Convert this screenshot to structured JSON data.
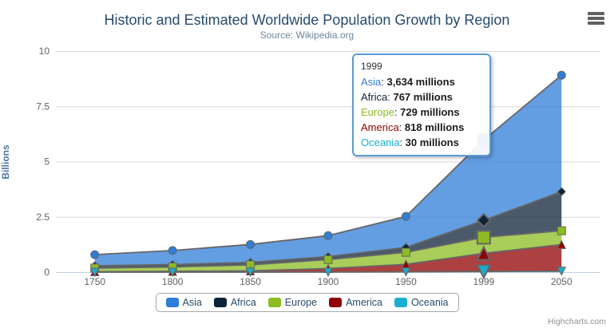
{
  "header": {
    "title": "Historic and Estimated Worldwide Population Growth by Region",
    "subtitle": "Source: Wikipedia.org"
  },
  "y_axis": {
    "title": "Billions",
    "ticks": [
      "0",
      "2.5",
      "5",
      "7.5",
      "10"
    ]
  },
  "x_axis": {
    "categories": [
      "1750",
      "1800",
      "1850",
      "1900",
      "1950",
      "1999",
      "2050"
    ]
  },
  "chart_data": {
    "type": "area",
    "stacking": "normal",
    "title": "Historic and Estimated Worldwide Population Growth by Region",
    "subtitle": "Source: Wikipedia.org",
    "unit": "millions",
    "ylabel": "Billions",
    "ylim": [
      0,
      10
    ],
    "grid": true,
    "legend_position": "bottom",
    "categories": [
      "1750",
      "1800",
      "1850",
      "1900",
      "1950",
      "1999",
      "2050"
    ],
    "hover_category": "1999",
    "hover_index": 5,
    "series": [
      {
        "name": "Asia",
        "color": "#2f7ed8",
        "marker": "circle",
        "values": [
          502,
          635,
          809,
          947,
          1402,
          3634,
          5268
        ]
      },
      {
        "name": "Africa",
        "color": "#0d233a",
        "marker": "diamond",
        "values": [
          106,
          107,
          111,
          133,
          221,
          767,
          1766
        ]
      },
      {
        "name": "Europe",
        "color": "#8bbc21",
        "marker": "square",
        "values": [
          163,
          203,
          276,
          408,
          547,
          729,
          628
        ]
      },
      {
        "name": "America",
        "color": "#910000",
        "marker": "triangle",
        "values": [
          18,
          31,
          54,
          156,
          339,
          818,
          1201
        ]
      },
      {
        "name": "Oceania",
        "color": "#1aadce",
        "marker": "triangle-down",
        "values": [
          2,
          2,
          2,
          6,
          13,
          30,
          46
        ]
      }
    ],
    "stack_order_bottom_to_top": [
      "Oceania",
      "America",
      "Europe",
      "Africa",
      "Asia"
    ],
    "line_color": "#666666",
    "fill_opacity": 0.75
  },
  "tooltip": {
    "header": "1999",
    "border_color": "#5b9cd6",
    "rows": [
      {
        "label": "Asia",
        "color": "#2f7ed8",
        "value": "3,634 millions"
      },
      {
        "label": "Africa",
        "color": "#0d233a",
        "value": "767 millions"
      },
      {
        "label": "Europe",
        "color": "#8bbc21",
        "value": "729 millions"
      },
      {
        "label": "America",
        "color": "#910000",
        "value": "818 millions"
      },
      {
        "label": "Oceania",
        "color": "#1aadce",
        "value": "30 millions"
      }
    ]
  },
  "legend": {
    "items": [
      {
        "label": "Asia",
        "color": "#2f7ed8"
      },
      {
        "label": "Africa",
        "color": "#0d233a"
      },
      {
        "label": "Europe",
        "color": "#8bbc21"
      },
      {
        "label": "America",
        "color": "#910000"
      },
      {
        "label": "Oceania",
        "color": "#1aadce"
      }
    ]
  },
  "credits": {
    "label": "Highcharts.com"
  }
}
